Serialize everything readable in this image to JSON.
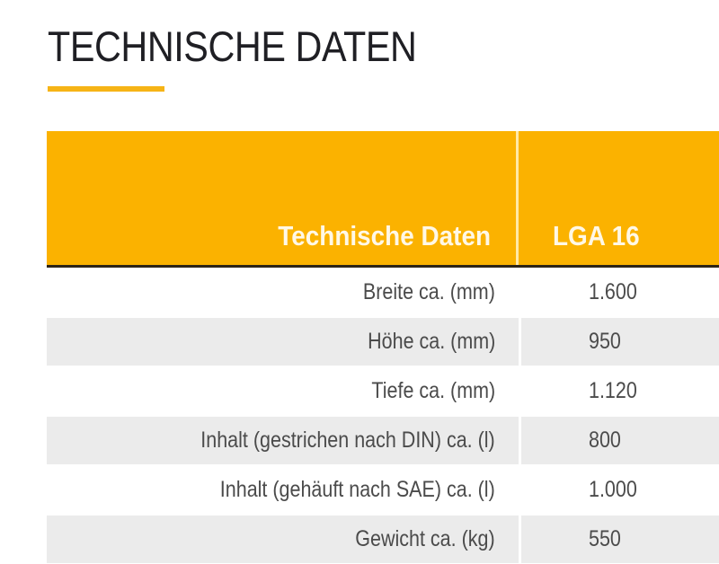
{
  "page": {
    "title": "TECHNISCHE DATEN",
    "accent_color": "#fbb200"
  },
  "table": {
    "headers": {
      "label_column": "Technische Daten",
      "value_column": "LGA 16"
    },
    "rows": [
      {
        "label": "Breite ca. (mm)",
        "value": "1.600"
      },
      {
        "label": "Höhe ca. (mm)",
        "value": "950"
      },
      {
        "label": "Tiefe ca. (mm)",
        "value": "1.120"
      },
      {
        "label": "Inhalt (gestrichen nach DIN) ca. (l)",
        "value": "800"
      },
      {
        "label": "Inhalt (gehäuft nach SAE) ca. (l)",
        "value": "1.000"
      },
      {
        "label": "Gewicht ca. (kg)",
        "value": "550"
      }
    ]
  }
}
